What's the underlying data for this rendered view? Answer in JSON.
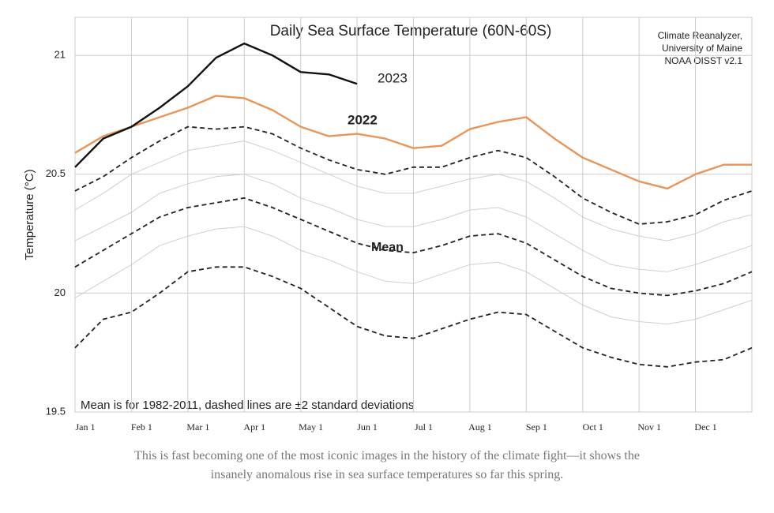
{
  "chart_data": {
    "type": "line",
    "title": "Daily Sea Surface Temperature (60N-60S)",
    "credit": [
      "Climate Reanalyzer,",
      "University of Maine",
      "NOAA OISST v2.1"
    ],
    "note": "Mean is for 1982-2011, dashed lines are ±2 standard deviations",
    "y_label": "Temperature (°C)",
    "categories": [
      "Jan 1",
      null,
      "Feb 1",
      null,
      "Mar 1",
      null,
      "Apr 1",
      null,
      "May 1",
      null,
      "Jun 1",
      null,
      "Jul 1",
      null,
      "Aug 1",
      null,
      "Sep 1",
      null,
      "Oct 1",
      null,
      "Nov 1",
      null,
      "Dec 1",
      null,
      null
    ],
    "ylim": [
      19.5,
      21.16
    ],
    "yticks": [
      19.5,
      20,
      20.5,
      21
    ],
    "grid": true,
    "series": [
      {
        "color": "#cfcfcf",
        "values": [
          20.35,
          20.42,
          20.5,
          20.55,
          20.6,
          20.62,
          20.64,
          20.6,
          20.55,
          20.5,
          20.45,
          20.42,
          20.42,
          20.45,
          20.48,
          20.5,
          20.47,
          20.4,
          20.32,
          20.27,
          20.24,
          20.22,
          20.25,
          20.3,
          20.33
        ]
      },
      {
        "color": "#cfcfcf",
        "values": [
          20.22,
          20.28,
          20.34,
          20.42,
          20.46,
          20.49,
          20.5,
          20.46,
          20.4,
          20.36,
          20.31,
          20.28,
          20.28,
          20.31,
          20.35,
          20.36,
          20.32,
          20.25,
          20.18,
          20.12,
          20.1,
          20.09,
          20.12,
          20.16,
          20.2
        ]
      },
      {
        "color": "#cfcfcf",
        "values": [
          19.98,
          20.05,
          20.12,
          20.2,
          20.24,
          20.27,
          20.28,
          20.24,
          20.18,
          20.14,
          20.09,
          20.05,
          20.04,
          20.08,
          20.12,
          20.13,
          20.09,
          20.02,
          19.95,
          19.9,
          19.88,
          19.87,
          19.89,
          19.93,
          19.97
        ]
      },
      {
        "color": "#222222",
        "dash": true,
        "values": [
          20.43,
          20.49,
          20.57,
          20.64,
          20.7,
          20.69,
          20.7,
          20.67,
          20.61,
          20.56,
          20.52,
          20.5,
          20.53,
          20.53,
          20.57,
          20.6,
          20.57,
          20.49,
          20.4,
          20.34,
          20.29,
          20.3,
          20.33,
          20.39,
          20.43
        ]
      },
      {
        "color": "#222222",
        "dash": true,
        "values": [
          19.77,
          19.89,
          19.92,
          20.0,
          20.09,
          20.11,
          20.11,
          20.07,
          20.02,
          19.94,
          19.86,
          19.82,
          19.81,
          19.85,
          19.89,
          19.92,
          19.91,
          19.84,
          19.77,
          19.73,
          19.7,
          19.69,
          19.71,
          19.72,
          19.77
        ]
      },
      {
        "name": "Mean",
        "color": "#222222",
        "dash": true,
        "values": [
          20.11,
          20.18,
          20.25,
          20.32,
          20.36,
          20.38,
          20.4,
          20.36,
          20.31,
          20.26,
          20.21,
          20.18,
          20.17,
          20.2,
          20.24,
          20.25,
          20.21,
          20.14,
          20.07,
          20.02,
          20.0,
          19.99,
          20.01,
          20.04,
          20.09
        ]
      },
      {
        "name": "2022",
        "color": "#e8955a",
        "values": [
          20.59,
          20.66,
          20.7,
          20.74,
          20.78,
          20.83,
          20.82,
          20.77,
          20.7,
          20.66,
          20.67,
          20.65,
          20.61,
          20.62,
          20.69,
          20.72,
          20.74,
          20.65,
          20.57,
          20.52,
          20.47,
          20.44,
          20.5,
          20.54,
          20.54
        ]
      },
      {
        "name": "2023",
        "color": "#111111",
        "values": [
          20.53,
          20.65,
          20.7,
          20.78,
          20.87,
          20.99,
          21.05,
          21.0,
          20.93,
          20.92,
          20.88,
          null,
          null,
          null,
          null,
          null,
          null,
          null,
          null,
          null,
          null,
          null,
          null,
          null,
          null
        ]
      }
    ]
  },
  "caption": "This is fast becoming one of the most iconic images in the history of the climate fight—it shows the insanely anomalous rise in sea surface temperatures so far this spring."
}
